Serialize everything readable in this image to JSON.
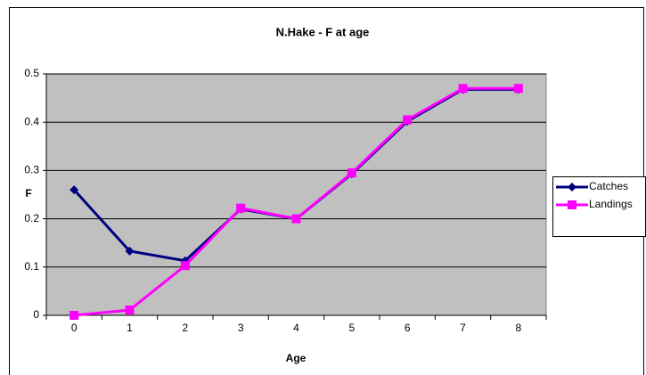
{
  "chart_data": {
    "type": "line",
    "title": "N.Hake - F at age",
    "x_label": "Age",
    "y_label": "F",
    "categories": [
      "0",
      "1",
      "2",
      "3",
      "4",
      "5",
      "6",
      "7",
      "8"
    ],
    "series": [
      {
        "name": "Catches",
        "color": "#000080",
        "marker": "diamond",
        "values": [
          0.26,
          0.133,
          0.113,
          0.22,
          0.2,
          0.293,
          0.402,
          0.468,
          0.468
        ]
      },
      {
        "name": "Landings",
        "color": "#ff00ff",
        "marker": "square",
        "values": [
          0,
          0.011,
          0.103,
          0.222,
          0.2,
          0.295,
          0.405,
          0.47,
          0.47
        ]
      }
    ],
    "ylim": [
      0,
      0.5
    ],
    "yticks": [
      0,
      0.1,
      0.2,
      0.3,
      0.4,
      0.5
    ],
    "grid": true,
    "legend": "right"
  }
}
